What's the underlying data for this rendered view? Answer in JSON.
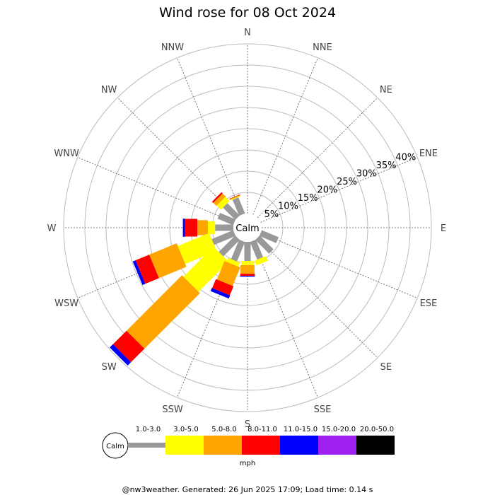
{
  "title": "Wind rose for 08 Oct 2024",
  "footer": "@nw3weather. Generated: 26 Jun 2025 17:09; Load time: 0.14 s",
  "calm_label": "Calm",
  "units_label": "mph",
  "directions": [
    "N",
    "NNE",
    "NE",
    "ENE",
    "E",
    "ESE",
    "SE",
    "SSE",
    "S",
    "SSW",
    "SW",
    "WSW",
    "W",
    "WNW",
    "NW",
    "NNW"
  ],
  "ring_labels": [
    "5%",
    "10%",
    "15%",
    "20%",
    "25%",
    "30%",
    "35%",
    "40%"
  ],
  "chart_data": {
    "type": "wind-rose",
    "title": "Wind rose for 08 Oct 2024",
    "radial_unit": "%",
    "radial_range": [
      0,
      40
    ],
    "radial_ticks": [
      5,
      10,
      15,
      20,
      25,
      30,
      35,
      40
    ],
    "calm_percent": 4,
    "speed_bins": [
      {
        "label": "1.0-3.0",
        "color": "#999999"
      },
      {
        "label": "3.0-5.0",
        "color": "#ffff00"
      },
      {
        "label": "5.0-8.0",
        "color": "#ffa500"
      },
      {
        "label": "8.0-11.0",
        "color": "#ff0000"
      },
      {
        "label": "11.0-15.0",
        "color": "#0000ff"
      },
      {
        "label": "15.0-20.0",
        "color": "#a020f0"
      },
      {
        "label": "20.0-50.0",
        "color": "#000000"
      }
    ],
    "series": [
      {
        "direction": "NNW",
        "cumulative": [
          4.1,
          4.3,
          4.5,
          4.6,
          4.6,
          4.6,
          4.6
        ]
      },
      {
        "direction": "NW",
        "cumulative": [
          4.1,
          5.5,
          6.5,
          6.9,
          6.9,
          6.9,
          6.9
        ]
      },
      {
        "direction": "WNW",
        "cumulative": [
          4.0,
          4.0,
          4.0,
          4.0,
          4.0,
          4.0,
          4.0
        ]
      },
      {
        "direction": "W",
        "cumulative": [
          4.3,
          6.0,
          8.5,
          11.4,
          11.9,
          11.9,
          11.9
        ]
      },
      {
        "direction": "WSW",
        "cumulative": [
          5.5,
          13.5,
          20.5,
          24.0,
          24.7,
          24.7,
          24.7
        ]
      },
      {
        "direction": "SW",
        "cumulative": [
          5.5,
          15.5,
          34.0,
          38.5,
          39.6,
          39.6,
          39.6
        ]
      },
      {
        "direction": "SSW",
        "cumulative": [
          5.0,
          6.0,
          10.7,
          13.0,
          13.8,
          13.8,
          13.8
        ]
      },
      {
        "direction": "S",
        "cumulative": [
          4.5,
          5.5,
          7.5,
          8.0,
          8.2,
          8.2,
          8.2
        ]
      },
      {
        "direction": "SSE",
        "cumulative": [
          4.5,
          5.7,
          5.7,
          5.7,
          5.7,
          5.7,
          5.7
        ]
      },
      {
        "direction": "SE",
        "cumulative": [
          4.6,
          4.6,
          4.6,
          4.6,
          4.6,
          4.6,
          4.6
        ]
      },
      {
        "direction": "ESE",
        "cumulative": [
          4.3,
          4.3,
          4.3,
          4.3,
          4.3,
          4.3,
          4.3
        ]
      }
    ]
  }
}
